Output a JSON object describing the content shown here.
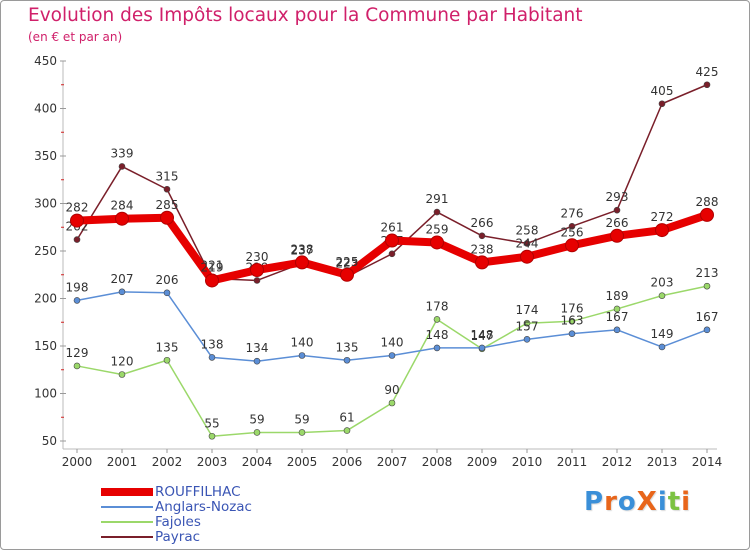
{
  "title": "Evolution des Impôts locaux pour la Commune par Habitant",
  "subtitle": "(en € et par an)",
  "logo": {
    "text": "ProXiti",
    "colors": [
      "#3a8fd8",
      "#e8651a",
      "#3a8fd8",
      "#e8651a",
      "#3a8fd8",
      "#7cc242",
      "#e8651a"
    ]
  },
  "chart_data": {
    "type": "line",
    "title": "Evolution des Impôts locaux pour la Commune par Habitant",
    "subtitle": "(en € et par an)",
    "x": [
      "2000",
      "2001",
      "2002",
      "2003",
      "2004",
      "2005",
      "2006",
      "2007",
      "2008",
      "2009",
      "2010",
      "2011",
      "2012",
      "2013",
      "2014"
    ],
    "ylim": [
      50,
      450
    ],
    "yticks": [
      50,
      100,
      150,
      200,
      250,
      300,
      350,
      400,
      450
    ],
    "grid": false,
    "legend": "bottom-left",
    "series": [
      {
        "name": "Payrac",
        "color": "#7a1f2a",
        "values": [
          262,
          339,
          315,
          221,
          219,
          237,
          223,
          247,
          291,
          266,
          258,
          276,
          293,
          405,
          425
        ]
      },
      {
        "name": "Fajoles",
        "color": "#9bd86a",
        "values": [
          129,
          120,
          135,
          55,
          59,
          59,
          61,
          90,
          178,
          147,
          174,
          176,
          189,
          203,
          213
        ]
      },
      {
        "name": "Anglars-Nozac",
        "color": "#5b8ed6",
        "values": [
          198,
          207,
          206,
          138,
          134,
          140,
          135,
          140,
          148,
          148,
          157,
          163,
          167,
          149,
          167
        ]
      },
      {
        "name": "ROUFFILHAC",
        "color": "#e60000",
        "values": [
          282,
          284,
          285,
          219,
          230,
          238,
          225,
          261,
          259,
          238,
          244,
          256,
          266,
          272,
          288
        ]
      }
    ],
    "legend_order": [
      "ROUFFILHAC",
      "Anglars-Nozac",
      "Fajoles",
      "Payrac"
    ]
  }
}
